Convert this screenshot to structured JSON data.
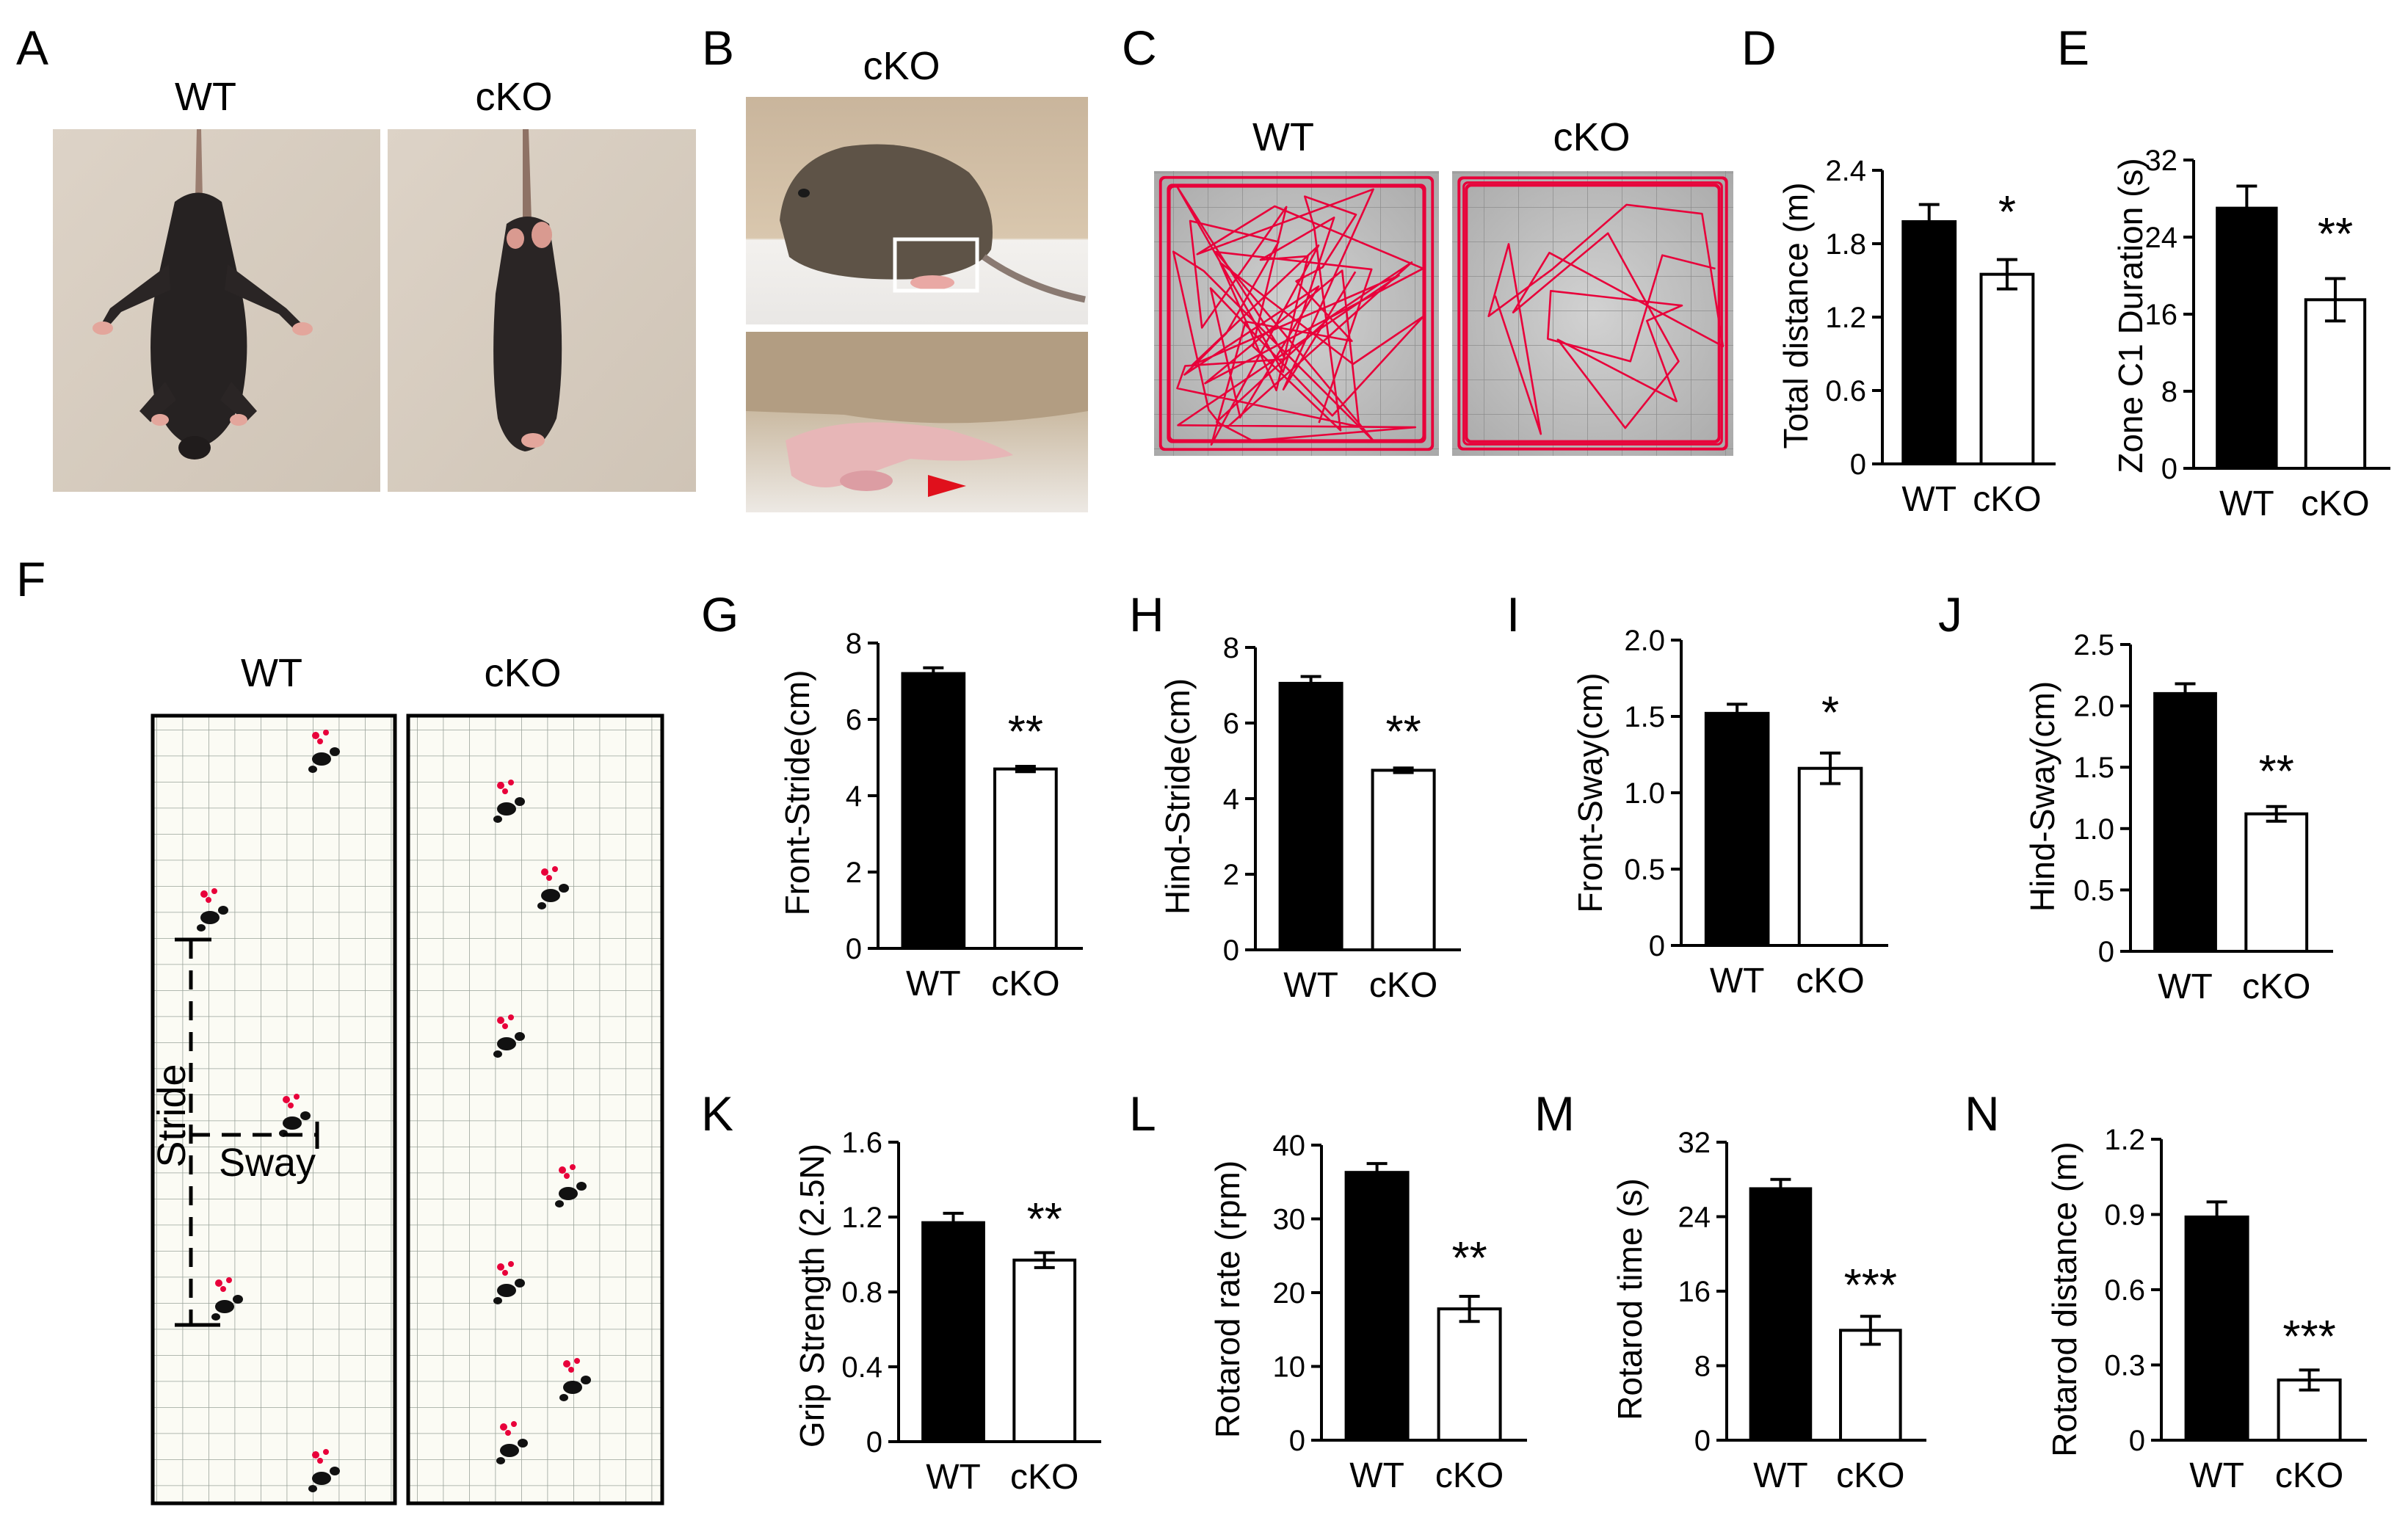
{
  "figure": {
    "panel_letters": [
      "A",
      "B",
      "C",
      "D",
      "E",
      "F",
      "G",
      "H",
      "I",
      "J",
      "K",
      "L",
      "M",
      "N"
    ],
    "photo_labels": {
      "a_wt": "WT",
      "a_cko": "cKO",
      "b_cko": "cKO",
      "c_wt": "WT",
      "c_cko": "cKO",
      "f_wt": "WT",
      "f_cko": "cKO",
      "stride": "Stride",
      "sway": "Sway"
    },
    "colors": {
      "wt_bar": "#000000",
      "cko_bar": "#ffffff",
      "track": "#e8003a",
      "arrow": "#e0101c"
    }
  },
  "chart_data": [
    {
      "panel": "D",
      "type": "bar",
      "categories": [
        "WT",
        "cKO"
      ],
      "values": [
        1.98,
        1.55
      ],
      "errors": [
        0.14,
        0.12
      ],
      "ylabel": "Total distance (m)",
      "ylim": [
        0,
        2.4
      ],
      "yticks": [
        "0",
        "0.6",
        "1.2",
        "1.8",
        "2.4"
      ],
      "significance": "*"
    },
    {
      "panel": "E",
      "type": "bar",
      "categories": [
        "WT",
        "cKO"
      ],
      "values": [
        27,
        17.5
      ],
      "errors": [
        2.3,
        2.2
      ],
      "ylabel": "Zone C1 Duration (s)",
      "ylim": [
        0,
        32
      ],
      "yticks": [
        "0",
        "8",
        "16",
        "24",
        "32"
      ],
      "significance": "**"
    },
    {
      "panel": "G",
      "type": "bar",
      "categories": [
        "WT",
        "cKO"
      ],
      "values": [
        7.2,
        4.7
      ],
      "errors": [
        0.15,
        0.07
      ],
      "ylabel": "Front-Stride(cm)",
      "ylim": [
        0,
        8
      ],
      "yticks": [
        "0",
        "2",
        "4",
        "6",
        "8"
      ],
      "significance": "**"
    },
    {
      "panel": "H",
      "type": "bar",
      "categories": [
        "WT",
        "cKO"
      ],
      "values": [
        7.05,
        4.75
      ],
      "errors": [
        0.18,
        0.06
      ],
      "ylabel": "Hind-Stride(cm)",
      "ylim": [
        0,
        8
      ],
      "yticks": [
        "0",
        "2",
        "4",
        "6",
        "8"
      ],
      "significance": "**"
    },
    {
      "panel": "I",
      "type": "bar",
      "categories": [
        "WT",
        "cKO"
      ],
      "values": [
        1.52,
        1.16
      ],
      "errors": [
        0.06,
        0.1
      ],
      "ylabel": "Front-Sway(cm)",
      "ylim": [
        0,
        2
      ],
      "yticks": [
        "0",
        "0.5",
        "1.0",
        "1.5",
        "2.0"
      ],
      "significance": "*"
    },
    {
      "panel": "J",
      "type": "bar",
      "categories": [
        "WT",
        "cKO"
      ],
      "values": [
        2.1,
        1.12
      ],
      "errors": [
        0.08,
        0.06
      ],
      "ylabel": "Hind-Sway(cm)",
      "ylim": [
        0,
        2.5
      ],
      "yticks": [
        "0",
        "0.5",
        "1.0",
        "1.5",
        "2.0",
        "2.5"
      ],
      "significance": "**"
    },
    {
      "panel": "K",
      "type": "bar",
      "categories": [
        "WT",
        "cKO"
      ],
      "values": [
        1.17,
        0.97
      ],
      "errors": [
        0.05,
        0.04
      ],
      "ylabel": "Grip Strength (2.5N)",
      "ylim": [
        0,
        1.6
      ],
      "yticks": [
        "0",
        "0.4",
        "0.8",
        "1.2",
        "1.6"
      ],
      "significance": "**"
    },
    {
      "panel": "L",
      "type": "bar",
      "categories": [
        "WT",
        "cKO"
      ],
      "values": [
        36.3,
        17.8
      ],
      "errors": [
        1.2,
        1.7
      ],
      "ylabel": "Rotarod rate (rpm)",
      "ylim": [
        0,
        40
      ],
      "yticks": [
        "0",
        "10",
        "20",
        "30",
        "40"
      ],
      "significance": "**"
    },
    {
      "panel": "M",
      "type": "bar",
      "categories": [
        "WT",
        "cKO"
      ],
      "values": [
        27,
        11.8
      ],
      "errors": [
        1.0,
        1.5
      ],
      "ylabel": "Rotarod time (s)",
      "ylim": [
        0,
        32
      ],
      "yticks": [
        "0",
        "8",
        "16",
        "24",
        "32"
      ],
      "significance": "***"
    },
    {
      "panel": "N",
      "type": "bar",
      "categories": [
        "WT",
        "cKO"
      ],
      "values": [
        0.89,
        0.24
      ],
      "errors": [
        0.06,
        0.04
      ],
      "ylabel": "Rotarod distance (m)",
      "ylim": [
        0,
        1.2
      ],
      "yticks": [
        "0",
        "0.3",
        "0.6",
        "0.9",
        "1.2"
      ],
      "significance": "***"
    }
  ]
}
